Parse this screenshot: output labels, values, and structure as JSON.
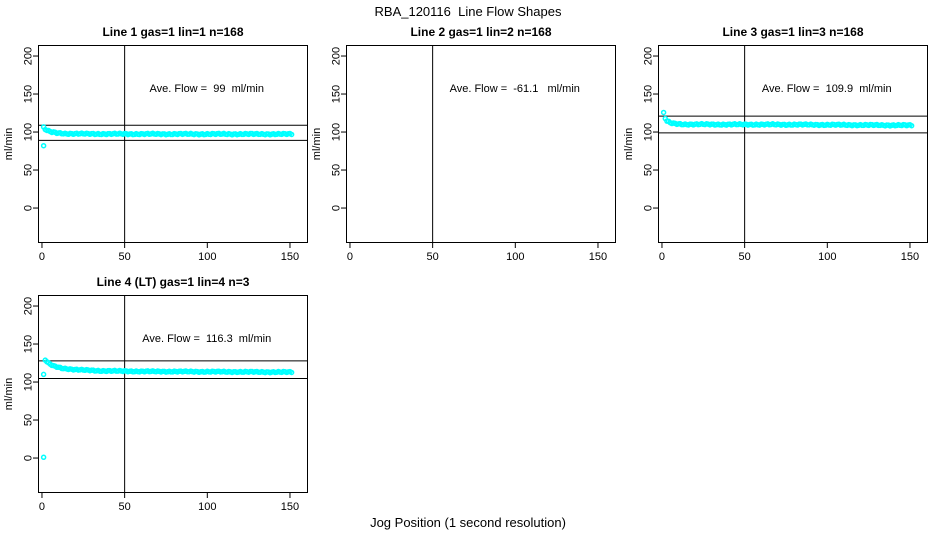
{
  "figure": {
    "title": "RBA_120116  Line Flow Shapes",
    "xlabel": "Jog Position (1 second resolution)",
    "background_color": "#ffffff",
    "axis_color": "#000000",
    "point_color": "#00ffff"
  },
  "chart_data": [
    {
      "type": "scatter",
      "title": "Line 1 gas=1 lin=1 n=168",
      "ave_flow": 99,
      "ave_flow_label": "Ave. Flow =  99  ml/min",
      "ylabel": "ml/min",
      "x_ticks": [
        0,
        50,
        100,
        150
      ],
      "y_ticks": [
        0,
        50,
        100,
        150,
        200
      ],
      "xlim": [
        -2.4,
        160.9
      ],
      "ylim": [
        -46,
        214.5
      ],
      "grid": false,
      "vline_x": 50,
      "ref_lines": [
        108.9,
        89.1
      ],
      "series": [
        {
          "name": "flow",
          "x_start": 1,
          "x_end": 151,
          "anchors": [
            [
              1,
              106
            ],
            [
              2,
              103.5
            ],
            [
              4,
              101
            ],
            [
              6,
              99.8
            ],
            [
              9,
              98.8
            ],
            [
              14,
              98
            ],
            [
              25,
              97.6
            ],
            [
              60,
              97.4
            ],
            [
              151,
              97.3
            ]
          ],
          "noise": 0.7
        }
      ],
      "outliers": [
        [
          1,
          82
        ]
      ]
    },
    {
      "type": "scatter",
      "title": "Line 2 gas=1 lin=2 n=168",
      "ave_flow": -61.1,
      "ave_flow_label": "Ave. Flow =  -61.1   ml/min",
      "ylabel": "ml/min",
      "x_ticks": [
        0,
        50,
        100,
        150
      ],
      "y_ticks": [
        0,
        50,
        100,
        150,
        200
      ],
      "xlim": [
        -2.4,
        160.9
      ],
      "ylim": [
        -46,
        214.5
      ],
      "grid": false,
      "vline_x": 50,
      "ref_lines": [],
      "series": [],
      "outliers": []
    },
    {
      "type": "scatter",
      "title": "Line 3 gas=1 lin=3 n=168",
      "ave_flow": 109.9,
      "ave_flow_label": "Ave. Flow =  109.9  ml/min",
      "ylabel": "ml/min",
      "x_ticks": [
        0,
        50,
        100,
        150
      ],
      "y_ticks": [
        0,
        50,
        100,
        150,
        200
      ],
      "xlim": [
        -2.4,
        160.9
      ],
      "ylim": [
        -46,
        214.5
      ],
      "grid": false,
      "vline_x": 50,
      "ref_lines": [
        120.9,
        98.9
      ],
      "series": [
        {
          "name": "flow",
          "x_start": 1,
          "x_end": 151,
          "anchors": [
            [
              1,
              125
            ],
            [
              2,
              118
            ],
            [
              3,
              114.5
            ],
            [
              5,
              112
            ],
            [
              8,
              110.8
            ],
            [
              14,
              110.2
            ],
            [
              30,
              110
            ],
            [
              80,
              109.8
            ],
            [
              151,
              108.8
            ]
          ],
          "noise": 0.7
        }
      ],
      "outliers": []
    },
    {
      "type": "scatter",
      "title": "Line 4 (LT) gas=1 lin=4 n=3",
      "ave_flow": 116.3,
      "ave_flow_label": "Ave. Flow =  116.3  ml/min",
      "ylabel": "ml/min",
      "x_ticks": [
        0,
        50,
        100,
        150
      ],
      "y_ticks": [
        0,
        50,
        100,
        150,
        200
      ],
      "xlim": [
        -2.4,
        160.9
      ],
      "ylim": [
        -46,
        214.5
      ],
      "grid": false,
      "vline_x": 50,
      "ref_lines": [
        127.9,
        104.7
      ],
      "series": [
        {
          "name": "flow",
          "x_start": 2,
          "x_end": 151,
          "anchors": [
            [
              2,
              129
            ],
            [
              4,
              124.5
            ],
            [
              7,
              121
            ],
            [
              12,
              118.3
            ],
            [
              20,
              116.3
            ],
            [
              35,
              114.8
            ],
            [
              60,
              114
            ],
            [
              100,
              113.6
            ],
            [
              151,
              113
            ]
          ],
          "noise": 0.6
        }
      ],
      "outliers": [
        [
          1,
          110
        ],
        [
          1,
          1
        ]
      ]
    }
  ]
}
